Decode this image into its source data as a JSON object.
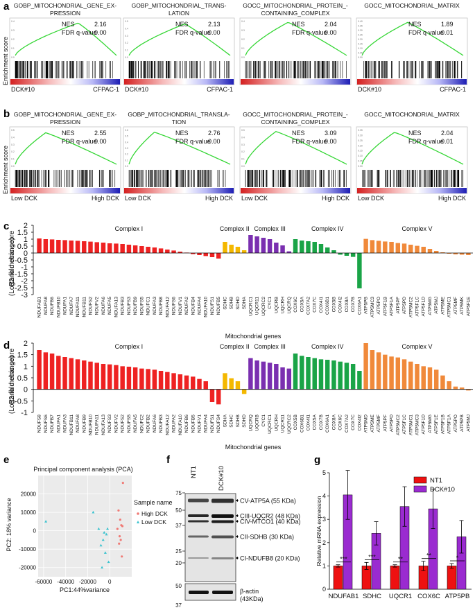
{
  "panel_labels": {
    "a": "a",
    "b": "b",
    "c": "c",
    "d": "d",
    "e": "e",
    "f": "f",
    "g": "g"
  },
  "colors": {
    "running_es": "#34d634",
    "complex": {
      "I": "#ee2222",
      "II": "#f4b800",
      "III": "#7a2fb0",
      "IV": "#1aa447",
      "V": "#f0893a"
    },
    "pca_high": "#f07a75",
    "pca_low": "#3cc3cf",
    "bar_nt1": "#ee1111",
    "bar_dck": "#9a2bd0"
  },
  "chart_data": [
    {
      "id": "gsea_a",
      "type": "line",
      "ylabel": "Enrichment score",
      "plots": [
        {
          "title": "GOBP_MITOCHONDRIAL_GENE_EX-\nPRESSION",
          "nes": "2.16",
          "fdr": "0.00",
          "left": "DCK#10",
          "right": "CFPAC-1",
          "yticks": [
            "0.4",
            "0.3",
            "0.2",
            "0.1",
            "0.0"
          ],
          "ymax": 0.45,
          "peak_x": 0.62,
          "peak": 0.42,
          "density": 0.55
        },
        {
          "title": "GOBP_MITOCHONDRIAL_TRANS-\nLATION",
          "nes": "2.13",
          "fdr": "0.00",
          "left": "DCK#10",
          "right": "CFPAC-1",
          "yticks": [
            "0.5",
            "0.4",
            "0.3",
            "0.2",
            "0.1",
            "0.0"
          ],
          "ymax": 0.55,
          "peak_x": 0.55,
          "peak": 0.5,
          "density": 0.5
        },
        {
          "title": "GOCC_MITOCHONDRIAL_PROTEIN_-\nCONTAINING_COMPLEX",
          "nes": "2.04",
          "fdr": "0.00",
          "left": "",
          "right": "",
          "yticks": [
            "0.4",
            "0.3",
            "0.2",
            "0.1",
            "0.0"
          ],
          "ymax": 0.45,
          "peak_x": 0.42,
          "peak": 0.43,
          "density": 0.85
        },
        {
          "title": "GOCC_MITOCHONDRIAL_MATRIX",
          "nes": "1.89",
          "fdr": "0.01",
          "left": "DCK#10",
          "right": "CFPAC-1",
          "yticks": [
            "0.40",
            "0.35",
            "0.30",
            "0.25",
            "0.20",
            "0.15",
            "0.10",
            "0.05",
            "0.00"
          ],
          "ymax": 0.42,
          "peak_x": 0.45,
          "peak": 0.4,
          "density": 0.9
        }
      ]
    },
    {
      "id": "gsea_b",
      "type": "line",
      "ylabel": "Enrichment score",
      "plots": [
        {
          "title": "GOBP_MITOCHONDRIAL_GENE_EX-\nPRESSION",
          "nes": "2.55",
          "fdr": "0.00",
          "left": "Low DCK",
          "right": "High DCK",
          "yticks": [
            "0.5",
            "0.4",
            "0.3",
            "0.2",
            "0.1",
            "0.0"
          ],
          "ymax": 0.55,
          "peak_x": 0.3,
          "peak": 0.5,
          "density": 0.6
        },
        {
          "title": "GOBP_MITOCHONDRIAL_TRANSLA-\nTION",
          "nes": "2.76",
          "fdr": "0.00",
          "left": "Low DCK",
          "right": "High DCK",
          "yticks": [
            "0.6",
            "0.5",
            "0.4",
            "0.3",
            "0.2",
            "0.1",
            "0.0"
          ],
          "ymax": 0.65,
          "peak_x": 0.25,
          "peak": 0.6,
          "density": 0.55
        },
        {
          "title": "GOCC_MITOCHONDRIAL_PROTEIN_-\nCONTAINING_COMPLEX",
          "nes": "3.09",
          "fdr": "0.00",
          "left": "Low DCK",
          "right": "High DCK",
          "yticks": [
            "0.5",
            "0.4",
            "0.3",
            "0.2",
            "0.1",
            "0.0"
          ],
          "ymax": 0.55,
          "peak_x": 0.3,
          "peak": 0.52,
          "density": 0.85
        },
        {
          "title": "GOCC_MITOCHONDRIAL_MATRIX",
          "nes": "2.04",
          "fdr": "0.01",
          "left": "Low DCK",
          "right": "High DCK",
          "yticks": [
            "0.35",
            "0.30",
            "0.25",
            "0.20",
            "0.15",
            "0.10",
            "0.05",
            "0.00"
          ],
          "ymax": 0.38,
          "peak_x": 0.32,
          "peak": 0.35,
          "density": 0.9
        }
      ]
    },
    {
      "id": "rank_c",
      "type": "bar",
      "ylabel": "Rank metric score\n(Log2-fold change)",
      "xlabel": "Mitochondrial genes",
      "ylim": [
        -3,
        2
      ],
      "yticks": [
        "2",
        "1.5",
        "1",
        "0.5",
        "0",
        "-0.5",
        "-1",
        "-1.5",
        "-2",
        "-2.5",
        "-3"
      ],
      "complex_labels": [
        "Complex I",
        "Complex II",
        "Complex III",
        "Complex IV",
        "Complex V"
      ],
      "genes": {
        "I": [
          "NDUFAB1",
          "NDUFA8",
          "NDUFB6",
          "NDUFB10",
          "NDUFA1",
          "NDUFA7",
          "NDUFA11",
          "NDUFB11",
          "NDUFS2",
          "NDUFV2",
          "NDUFA6",
          "NDUFA5",
          "NDUFA13",
          "NDUFB3",
          "NDUFS3",
          "NDUFB9",
          "NDUFS5",
          "NDUFC1",
          "NDUFA3",
          "NDUFB8",
          "NDUFA12",
          "NDUFS6",
          "NDUFV1",
          "NDUFA2",
          "NDUFB4",
          "NDUFA4",
          "NDUFA10",
          "NDUFS1",
          "NDUFB5"
        ],
        "II": [
          "SDHC",
          "SDHB",
          "SDHD",
          "SDHA"
        ],
        "III": [
          "UQCRC1",
          "UQCR11",
          "UQCRC2",
          "CYC1",
          "UQCRB",
          "UQCRH",
          "UQCRQ"
        ],
        "IV": [
          "COX6C",
          "COX5A",
          "COX7A2",
          "COX7C",
          "COX4I1",
          "COX6B1",
          "COX5B",
          "COX4I2",
          "COX8A",
          "COX7B",
          "COX6A1"
        ],
        "V": [
          "ATP5PB",
          "ATP5MC3",
          "ATP5PO",
          "ATP5F1B",
          "ATP5F1A",
          "ATP5PF",
          "ATP5PD",
          "ATP5MC2",
          "ATP5F1C",
          "ATP5F1D",
          "ATP5MG",
          "ATP5MJ",
          "ATP5ME",
          "ATP5MC1",
          "ATP5MF",
          "ATP5MK",
          "ATP5F1E"
        ]
      },
      "values": {
        "I": [
          1.05,
          1.0,
          0.98,
          0.95,
          0.93,
          0.9,
          0.88,
          0.85,
          0.82,
          0.78,
          0.75,
          0.7,
          0.68,
          0.65,
          0.6,
          0.55,
          0.5,
          0.45,
          0.4,
          0.33,
          0.25,
          0.18,
          0.1,
          0.03,
          -0.08,
          -0.15,
          -0.22,
          -0.3,
          -0.4
        ],
        "II": [
          0.8,
          0.6,
          0.45,
          0.2
        ],
        "III": [
          1.3,
          1.2,
          1.1,
          1.0,
          0.75,
          0.55,
          0.12
        ],
        "IV": [
          1.0,
          0.9,
          0.85,
          0.8,
          0.65,
          0.4,
          0.2,
          -0.12,
          -0.2,
          -0.28,
          -2.55
        ],
        "V": [
          1.02,
          0.93,
          0.88,
          0.83,
          0.8,
          0.72,
          0.68,
          0.6,
          0.52,
          0.45,
          0.3,
          0.15,
          0.05,
          -0.05,
          -0.1,
          -0.12,
          -0.15
        ]
      }
    },
    {
      "id": "rank_d",
      "type": "bar",
      "ylabel": "Rank metric score\n(Log2-fold change)",
      "xlabel": "Mitochondrial genes",
      "ylim": [
        -1,
        2
      ],
      "yticks": [
        "2",
        "1.5",
        "1",
        "0.5",
        "0",
        "-0.5",
        "-1"
      ],
      "complex_labels": [
        "Complex I",
        "Complex II",
        "Complex III",
        "Complex IV",
        "Complex V"
      ],
      "genes": {
        "I": [
          "NDUFS8",
          "NDUFS6",
          "NDUFB7",
          "NDUFA1",
          "NDUFA3",
          "NDUFB11",
          "NDUFA8",
          "NDUFB9",
          "NDUFB10",
          "NDUFA11",
          "NDUFA13",
          "NDUFS3",
          "NDUFV2",
          "NDUFS2",
          "NDUFS5",
          "NDUFA5",
          "NDUFC2",
          "NDUFB2",
          "NDUFA6",
          "NDUFB3",
          "NDUFA12",
          "NDUFA2",
          "NDUFA10",
          "NDUFB6",
          "NDUFB5",
          "NDUFV1",
          "NDUFA4",
          "NDUFS1",
          "NDUFS4"
        ],
        "II": [
          "SDHA",
          "SDHC",
          "SDHB",
          "SDHD"
        ],
        "III": [
          "UQCRQ",
          "UQCRB",
          "CYC1",
          "UQCRC1",
          "UQCRH",
          "UQCR11",
          "UQCRC2"
        ],
        "IV": [
          "COX5B",
          "COX6B1",
          "COX4I1",
          "COX5A",
          "COX7B",
          "COX6A1",
          "COX8A",
          "COX6C",
          "COX7A2",
          "COX7C",
          "COX4I2"
        ],
        "V": [
          "ATP5MD",
          "ATP5ME",
          "ATP5MF",
          "ATP5PF",
          "ATP5PD",
          "ATP5MC2",
          "ATP5F1C",
          "ATP5MC1",
          "ATP5MC3",
          "ATP5F1D",
          "ATP5MG",
          "ATP5F1E",
          "ATP5F1B",
          "ATP5F1A",
          "ATP5PO",
          "ATP5PB",
          "ATP5MJ"
        ]
      },
      "values": {
        "I": [
          1.7,
          1.6,
          1.55,
          1.45,
          1.4,
          1.35,
          1.3,
          1.25,
          1.2,
          1.15,
          1.1,
          1.08,
          1.05,
          1.0,
          0.98,
          0.95,
          0.9,
          0.88,
          0.85,
          0.8,
          0.75,
          0.7,
          0.65,
          0.6,
          0.55,
          0.45,
          0.35,
          -0.55,
          -0.65
        ],
        "II": [
          0.7,
          0.48,
          0.35,
          -0.2
        ],
        "III": [
          1.35,
          1.25,
          1.2,
          1.15,
          1.1,
          0.95,
          0.9
        ],
        "IV": [
          1.55,
          1.45,
          1.4,
          1.35,
          1.3,
          1.28,
          1.25,
          1.2,
          1.15,
          1.1,
          0.8
        ],
        "V": [
          2.0,
          1.7,
          1.6,
          1.5,
          1.42,
          1.38,
          1.3,
          1.2,
          1.1,
          1.0,
          0.95,
          0.85,
          0.6,
          0.35,
          0.12,
          0.08,
          -0.05
        ]
      }
    },
    {
      "id": "pca_e",
      "type": "scatter",
      "title": "Principal component analysis (PCA)",
      "xlabel": "PC1:44%variance",
      "ylabel": "PC2: 18% variance",
      "xlim": [
        -65000,
        20000
      ],
      "ylim": [
        -25000,
        30000
      ],
      "xticks": [
        "-60000",
        "-40000",
        "-20000",
        "0"
      ],
      "xtick_vals": [
        -60000,
        -40000,
        -20000,
        0
      ],
      "yticks": [
        "20000",
        "10000",
        "0",
        "-10000",
        "-20000"
      ],
      "ytick_vals": [
        20000,
        10000,
        0,
        -10000,
        -20000
      ],
      "legend_title": "Sample name",
      "series": [
        {
          "name": "High DCK",
          "marker": "dot",
          "x": [
            12000,
            8000,
            9500,
            10500,
            11500,
            7000,
            9000,
            10000,
            8500,
            11000
          ],
          "y": [
            26000,
            11000,
            6000,
            3000,
            2500,
            1000,
            -3000,
            -5000,
            -7000,
            -14000
          ]
        },
        {
          "name": "Low DCK",
          "marker": "triangle",
          "x": [
            -58000,
            -15000,
            -10000,
            -5000,
            -3000,
            -2000,
            -6000,
            -8000,
            -4000,
            -1000,
            -7000
          ],
          "y": [
            5000,
            10000,
            1000,
            -1000,
            -2000,
            1000,
            -5000,
            -8000,
            -12000,
            -17000,
            -20000
          ]
        }
      ]
    },
    {
      "id": "blot_f",
      "type": "table",
      "lanes": [
        "NT1",
        "DCK#10"
      ],
      "mw": [
        "75",
        "50",
        "37",
        "25",
        "20",
        "50",
        "37"
      ],
      "bands": [
        "CV-ATP5A (55 KDa)",
        "CIII-UQCR2 (48 KDa)",
        "CIV-MTCO1 (40 KDa)",
        "CII-SDHB (30 KDa)",
        "CI-NDUFB8 (20 KDa)"
      ],
      "loading_label": "β-actin\n(43KDa)"
    },
    {
      "id": "qpcr_g",
      "type": "bar",
      "ylabel": "Relative mRNA expression",
      "ylim": [
        0,
        5
      ],
      "yticks": [
        "5",
        "4",
        "3",
        "2",
        "1",
        "0"
      ],
      "categories": [
        "NDUFAB1",
        "SDHC",
        "UQCR1",
        "COX6C",
        "ATP5PB"
      ],
      "series": [
        {
          "name": "NT1",
          "values": [
            1.0,
            1.0,
            1.0,
            1.0,
            1.0
          ],
          "errors": [
            0.05,
            0.15,
            0.05,
            0.2,
            0.1
          ]
        },
        {
          "name": "DCK#10",
          "values": [
            4.05,
            2.4,
            3.55,
            3.45,
            2.25
          ],
          "errors": [
            1.05,
            0.5,
            0.85,
            0.85,
            0.7
          ]
        }
      ],
      "significance": [
        "***",
        "***",
        "**",
        "**",
        "*"
      ]
    }
  ]
}
